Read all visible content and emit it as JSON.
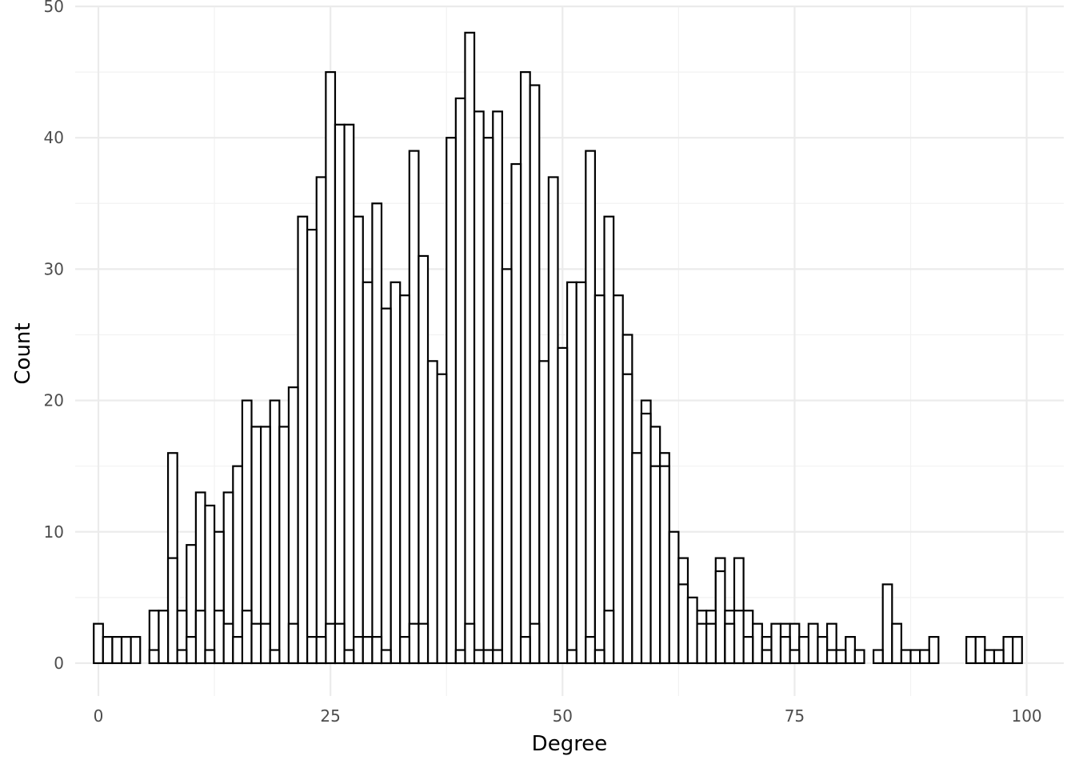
{
  "chart_data": {
    "type": "bar",
    "title": "",
    "xlabel": "Degree",
    "ylabel": "Count",
    "xlim": [
      -2.5,
      104
    ],
    "ylim": [
      -2.5,
      50
    ],
    "x_ticks": [
      0,
      25,
      50,
      75,
      100
    ],
    "y_ticks": [
      0,
      10,
      20,
      30,
      40,
      50
    ],
    "grid": true,
    "legend": "none",
    "bar_fill": "#ffffff",
    "bar_outline": "#000000",
    "series": [
      {
        "values": [
          [
            0,
            3
          ],
          [
            1,
            2
          ],
          [
            2,
            2
          ],
          [
            3,
            2
          ],
          [
            4,
            2
          ],
          [
            6,
            4
          ],
          [
            6,
            1
          ],
          [
            7,
            4
          ],
          [
            8,
            16
          ],
          [
            8,
            8
          ],
          [
            9,
            4
          ],
          [
            9,
            1
          ],
          [
            10,
            9
          ],
          [
            10,
            2
          ],
          [
            11,
            13
          ],
          [
            11,
            4
          ],
          [
            12,
            12
          ],
          [
            12,
            1
          ],
          [
            13,
            10
          ],
          [
            13,
            4
          ],
          [
            14,
            13
          ],
          [
            14,
            3
          ],
          [
            15,
            15
          ],
          [
            15,
            2
          ],
          [
            16,
            20
          ],
          [
            16,
            4
          ],
          [
            17,
            18
          ],
          [
            17,
            3
          ],
          [
            18,
            18
          ],
          [
            18,
            3
          ],
          [
            19,
            20
          ],
          [
            19,
            1
          ],
          [
            20,
            18
          ],
          [
            21,
            21
          ],
          [
            21,
            3
          ],
          [
            22,
            34
          ],
          [
            23,
            33
          ],
          [
            23,
            2
          ],
          [
            24,
            37
          ],
          [
            24,
            2
          ],
          [
            25,
            45
          ],
          [
            25,
            3
          ],
          [
            26,
            41
          ],
          [
            26,
            3
          ],
          [
            27,
            41
          ],
          [
            27,
            1
          ],
          [
            28,
            34
          ],
          [
            28,
            2
          ],
          [
            29,
            29
          ],
          [
            29,
            2
          ],
          [
            30,
            35
          ],
          [
            30,
            2
          ],
          [
            31,
            27
          ],
          [
            31,
            1
          ],
          [
            32,
            29
          ],
          [
            33,
            28
          ],
          [
            33,
            2
          ],
          [
            34,
            39
          ],
          [
            34,
            3
          ],
          [
            35,
            31
          ],
          [
            35,
            3
          ],
          [
            36,
            23
          ],
          [
            37,
            22
          ],
          [
            38,
            40
          ],
          [
            39,
            43
          ],
          [
            39,
            1
          ],
          [
            40,
            48
          ],
          [
            40,
            3
          ],
          [
            41,
            42
          ],
          [
            41,
            1
          ],
          [
            42,
            40
          ],
          [
            42,
            1
          ],
          [
            43,
            42
          ],
          [
            43,
            1
          ],
          [
            44,
            30
          ],
          [
            45,
            38
          ],
          [
            46,
            45
          ],
          [
            46,
            2
          ],
          [
            47,
            44
          ],
          [
            47,
            3
          ],
          [
            48,
            23
          ],
          [
            49,
            37
          ],
          [
            50,
            24
          ],
          [
            51,
            29
          ],
          [
            51,
            1
          ],
          [
            52,
            29
          ],
          [
            53,
            39
          ],
          [
            53,
            2
          ],
          [
            54,
            28
          ],
          [
            54,
            1
          ],
          [
            55,
            34
          ],
          [
            55,
            4
          ],
          [
            56,
            28
          ],
          [
            57,
            25
          ],
          [
            57,
            22
          ],
          [
            58,
            16
          ],
          [
            59,
            20
          ],
          [
            59,
            19
          ],
          [
            60,
            18
          ],
          [
            60,
            15
          ],
          [
            61,
            16
          ],
          [
            61,
            15
          ],
          [
            62,
            10
          ],
          [
            63,
            8
          ],
          [
            63,
            6
          ],
          [
            64,
            5
          ],
          [
            65,
            4
          ],
          [
            65,
            3
          ],
          [
            66,
            4
          ],
          [
            66,
            3
          ],
          [
            67,
            8
          ],
          [
            67,
            7
          ],
          [
            68,
            4
          ],
          [
            68,
            3
          ],
          [
            69,
            8
          ],
          [
            69,
            4
          ],
          [
            70,
            4
          ],
          [
            70,
            2
          ],
          [
            71,
            3
          ],
          [
            72,
            2
          ],
          [
            72,
            1
          ],
          [
            73,
            3
          ],
          [
            74,
            3
          ],
          [
            74,
            2
          ],
          [
            75,
            3
          ],
          [
            75,
            1
          ],
          [
            76,
            2
          ],
          [
            77,
            3
          ],
          [
            78,
            2
          ],
          [
            79,
            3
          ],
          [
            79,
            1
          ],
          [
            80,
            1
          ],
          [
            81,
            2
          ],
          [
            82,
            1
          ],
          [
            84,
            1
          ],
          [
            85,
            6
          ],
          [
            86,
            3
          ],
          [
            87,
            1
          ],
          [
            88,
            1
          ],
          [
            89,
            1
          ],
          [
            90,
            2
          ],
          [
            94,
            2
          ],
          [
            95,
            2
          ],
          [
            96,
            1
          ],
          [
            97,
            1
          ],
          [
            98,
            2
          ],
          [
            99,
            2
          ]
        ]
      }
    ]
  }
}
